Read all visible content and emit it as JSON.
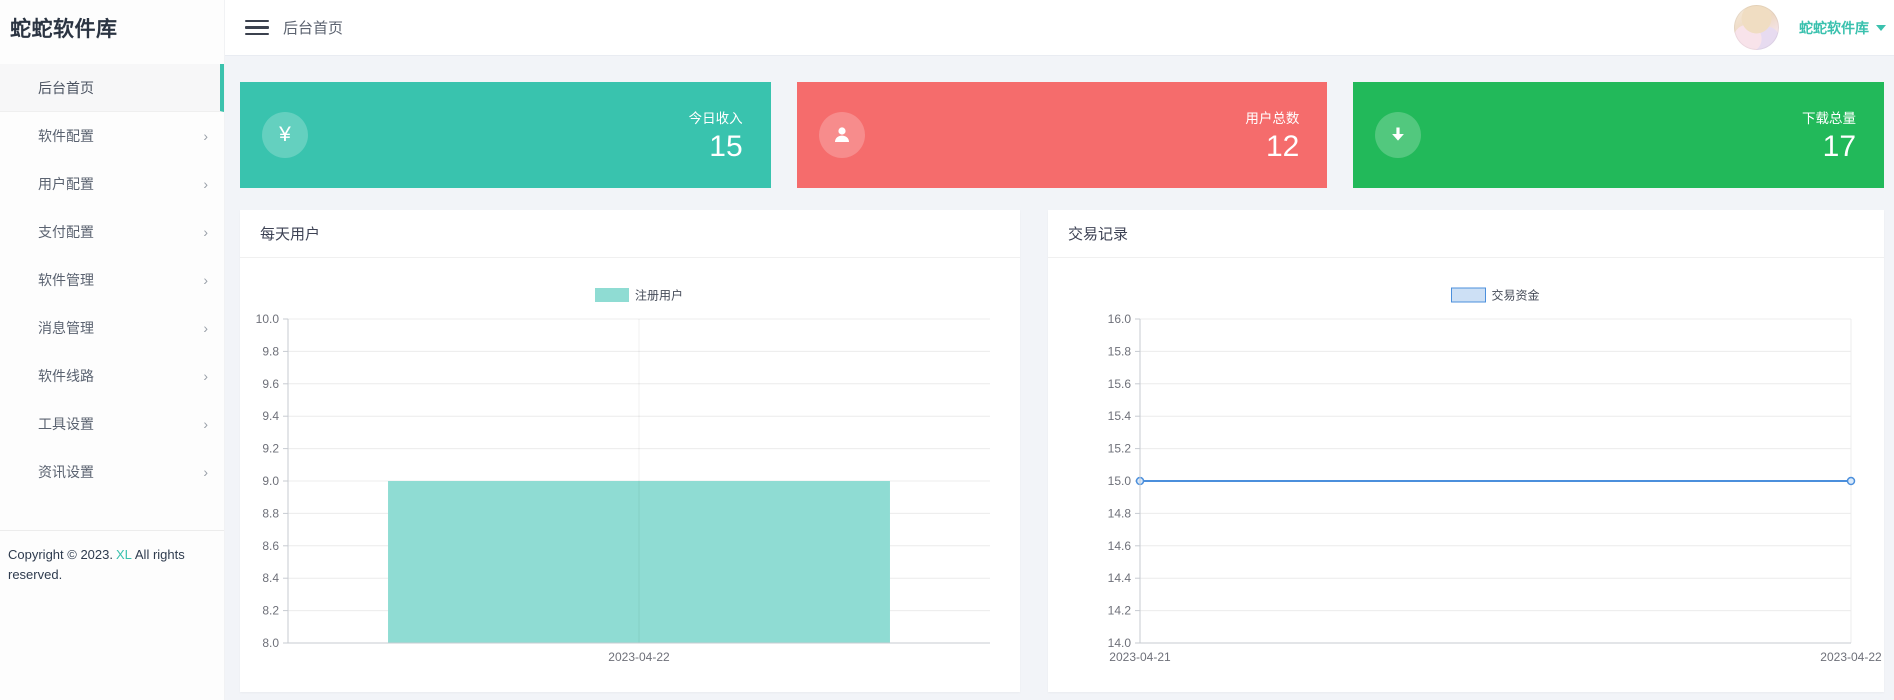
{
  "brand": "蛇蛇软件库",
  "header": {
    "breadcrumb": "后台首页",
    "user_name": "蛇蛇软件库"
  },
  "sidebar": {
    "items": [
      {
        "key": "dashboard",
        "label": "后台首页",
        "active": true,
        "arrow": false
      },
      {
        "key": "software-config",
        "label": "软件配置",
        "active": false,
        "arrow": true
      },
      {
        "key": "user-config",
        "label": "用户配置",
        "active": false,
        "arrow": true
      },
      {
        "key": "payment-config",
        "label": "支付配置",
        "active": false,
        "arrow": true
      },
      {
        "key": "software-manage",
        "label": "软件管理",
        "active": false,
        "arrow": true
      },
      {
        "key": "message-manage",
        "label": "消息管理",
        "active": false,
        "arrow": true
      },
      {
        "key": "software-lines",
        "label": "软件线路",
        "active": false,
        "arrow": true
      },
      {
        "key": "tool-settings",
        "label": "工具设置",
        "active": false,
        "arrow": true
      },
      {
        "key": "news-settings",
        "label": "资讯设置",
        "active": false,
        "arrow": true
      }
    ],
    "copyright": {
      "prefix": "Copyright © 2023.",
      "link": "XL",
      "suffix": "All rights reserved."
    }
  },
  "stat_cards": [
    {
      "key": "income",
      "label": "今日收入",
      "value": "15",
      "color": "#39c3ae",
      "icon": "yen-icon"
    },
    {
      "key": "users",
      "label": "用户总数",
      "value": "12",
      "color": "#f56c6c",
      "icon": "user-icon"
    },
    {
      "key": "downloads",
      "label": "下载总量",
      "value": "17",
      "color": "#22b95a",
      "icon": "download-icon"
    }
  ],
  "panels": [
    {
      "title": "每天用户"
    },
    {
      "title": "交易记录"
    }
  ],
  "chart_data": [
    {
      "type": "bar",
      "title": "每天用户",
      "legend": "注册用户",
      "categories": [
        "2023-04-22"
      ],
      "values": [
        9
      ],
      "ylim": [
        8,
        10
      ],
      "ytick_step": 0.2,
      "color": "#8fdcd3",
      "grid": true,
      "legend_position": "top-center"
    },
    {
      "type": "line",
      "title": "交易记录",
      "legend": "交易资金",
      "categories": [
        "2023-04-21",
        "2023-04-22"
      ],
      "values": [
        15,
        15
      ],
      "ylim": [
        14,
        16
      ],
      "ytick_step": 0.2,
      "color": "#4b8fdc",
      "marker": "circle",
      "grid": true,
      "legend_position": "top-center"
    }
  ]
}
